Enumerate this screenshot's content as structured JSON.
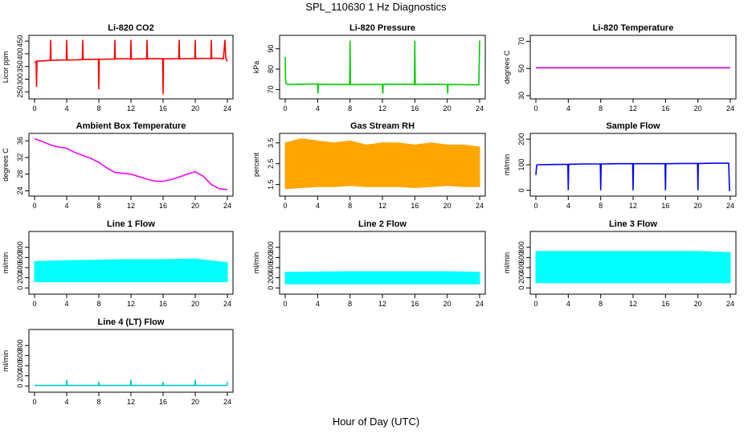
{
  "figure": {
    "title": "SPL_110630  1 Hz Diagnostics",
    "xlabel": "Hour of Day (UTC)"
  },
  "chart_data": [
    {
      "type": "line",
      "title": "Li-820 CO2",
      "ylabel": "Licor ppm",
      "color": "#ff0000",
      "xlim": [
        0,
        24
      ],
      "xticks": [
        0,
        4,
        8,
        12,
        16,
        20,
        24
      ],
      "ylim": [
        235,
        460
      ],
      "yticks": [
        250,
        300,
        350,
        400,
        450
      ],
      "x": [
        0,
        0.2,
        0.25,
        0.3,
        1,
        1.95,
        2,
        2.05,
        3,
        3.95,
        4,
        4.05,
        5,
        5.95,
        6,
        6.05,
        7,
        7.95,
        8,
        8.05,
        9,
        9.95,
        10,
        10.05,
        11,
        11.95,
        12,
        12.05,
        13,
        13.95,
        14,
        14.05,
        15,
        15.95,
        16,
        16.05,
        17,
        17.95,
        18,
        18.05,
        19,
        19.95,
        20,
        20.05,
        21,
        21.95,
        22,
        22.05,
        23,
        23.5,
        23.7,
        23.8,
        24
      ],
      "y": [
        370,
        365,
        270,
        372,
        372,
        374,
        455,
        374,
        375,
        376,
        455,
        375,
        376,
        377,
        455,
        378,
        378,
        379,
        260,
        378,
        379,
        379,
        455,
        380,
        380,
        380,
        455,
        379,
        380,
        380,
        455,
        380,
        381,
        380,
        240,
        380,
        380,
        381,
        455,
        380,
        381,
        381,
        455,
        381,
        382,
        381,
        455,
        382,
        382,
        380,
        455,
        382,
        370
      ]
    },
    {
      "type": "line",
      "title": "Li-820 Pressure",
      "ylabel": "kPa",
      "color": "#00cc00",
      "xlim": [
        0,
        24
      ],
      "xticks": [
        0,
        4,
        8,
        12,
        16,
        20,
        24
      ],
      "ylim": [
        67,
        95
      ],
      "yticks": [
        70,
        80,
        90
      ],
      "x": [
        0,
        0.05,
        0.1,
        0.3,
        2,
        4,
        4.05,
        4.1,
        6,
        7.95,
        8,
        8.05,
        10,
        12,
        12.05,
        12.1,
        14,
        15.95,
        16,
        16.05,
        18,
        20,
        20.05,
        20.1,
        22,
        23.9,
        24
      ],
      "y": [
        86,
        75,
        73,
        72.5,
        72.6,
        72.7,
        68,
        72.6,
        72.5,
        72.5,
        94,
        72.4,
        72.5,
        72.5,
        68,
        72.6,
        72.6,
        72.6,
        94,
        72.5,
        72.6,
        72.5,
        68,
        72.5,
        72.4,
        72.3,
        94
      ]
    },
    {
      "type": "line",
      "title": "Li-820 Temperature",
      "ylabel": "degrees C",
      "color": "#cc00cc",
      "xlim": [
        0,
        24
      ],
      "xticks": [
        0,
        4,
        8,
        12,
        16,
        20,
        24
      ],
      "ylim": [
        30,
        72
      ],
      "yticks": [
        30,
        50,
        70
      ],
      "x": [
        0,
        24
      ],
      "y": [
        50.5,
        50.5
      ]
    },
    {
      "type": "line",
      "title": "Ambient Box Temperature",
      "ylabel": "degrees C",
      "color": "#ff00ff",
      "xlim": [
        0,
        24
      ],
      "xticks": [
        0,
        4,
        8,
        12,
        16,
        20,
        24
      ],
      "ylim": [
        23.5,
        37
      ],
      "yticks": [
        24,
        28,
        32,
        36
      ],
      "x": [
        0,
        1,
        2,
        3,
        4,
        5,
        6,
        7,
        8,
        9,
        10,
        11,
        12,
        13,
        14,
        15,
        16,
        17,
        18,
        19,
        20,
        21,
        22,
        23,
        24
      ],
      "y": [
        36.5,
        35.8,
        35,
        34.5,
        34.2,
        33.2,
        32.5,
        31.8,
        30.8,
        29.5,
        28.4,
        28.2,
        28,
        27.4,
        26.8,
        26.3,
        26.3,
        26.7,
        27.3,
        28,
        28.6,
        27.5,
        25.5,
        24.5,
        24.3
      ]
    },
    {
      "type": "area",
      "title": "Gas Stream RH",
      "ylabel": "percent",
      "color": "#ffa500",
      "xlim": [
        0,
        24
      ],
      "xticks": [
        0,
        4,
        8,
        12,
        16,
        20,
        24
      ],
      "ylim": [
        1.1,
        3.8
      ],
      "yticks": [
        1.5,
        2.5,
        3.5
      ],
      "x": [
        0,
        2,
        4,
        6,
        8,
        10,
        12,
        14,
        16,
        18,
        20,
        22,
        24
      ],
      "upper": [
        3.5,
        3.7,
        3.6,
        3.5,
        3.6,
        3.4,
        3.5,
        3.5,
        3.4,
        3.5,
        3.4,
        3.4,
        3.3
      ],
      "lower": [
        1.3,
        1.35,
        1.4,
        1.4,
        1.45,
        1.4,
        1.4,
        1.4,
        1.35,
        1.4,
        1.45,
        1.4,
        1.4
      ]
    },
    {
      "type": "line",
      "title": "Sample Flow",
      "ylabel": "ml/min",
      "color": "#0000ff",
      "xlim": [
        0,
        24
      ],
      "xticks": [
        0,
        4,
        8,
        12,
        16,
        20,
        24
      ],
      "ylim": [
        -10,
        210
      ],
      "yticks": [
        0,
        100,
        200
      ],
      "x": [
        0,
        0.1,
        0.2,
        2,
        3.95,
        4,
        4.05,
        6,
        7.95,
        8,
        8.05,
        10,
        11.95,
        12,
        12.05,
        14,
        15.95,
        16,
        16.05,
        18,
        19.95,
        20,
        20.05,
        22,
        23.8,
        23.9,
        24
      ],
      "y": [
        60,
        98,
        100,
        101,
        102,
        0,
        102,
        103,
        103,
        0,
        103,
        104,
        104,
        0,
        104,
        104,
        104,
        0,
        104,
        105,
        105,
        0,
        105,
        106,
        106,
        0,
        0
      ]
    },
    {
      "type": "area",
      "title": "Line 1 Flow",
      "ylabel": "ml/min",
      "color": "#00ffff",
      "xlim": [
        0,
        24
      ],
      "xticks": [
        0,
        4,
        8,
        12,
        16,
        20,
        24
      ],
      "ylim": [
        -60,
        1050
      ],
      "yticks": [
        0,
        200,
        400,
        600,
        800
      ],
      "x": [
        0,
        4,
        8,
        12,
        16,
        20,
        24
      ],
      "upper": [
        520,
        540,
        550,
        560,
        560,
        570,
        500
      ],
      "lower": [
        120,
        120,
        120,
        120,
        120,
        120,
        120
      ]
    },
    {
      "type": "area",
      "title": "Line 2 Flow",
      "ylabel": "ml/min",
      "color": "#00ffff",
      "xlim": [
        0,
        24
      ],
      "xticks": [
        0,
        4,
        8,
        12,
        16,
        20,
        24
      ],
      "ylim": [
        -60,
        1050
      ],
      "yticks": [
        0,
        200,
        400,
        600,
        800
      ],
      "x": [
        0,
        4,
        8,
        12,
        16,
        20,
        24
      ],
      "upper": [
        310,
        315,
        320,
        320,
        320,
        320,
        310
      ],
      "lower": [
        80,
        80,
        80,
        80,
        80,
        80,
        80
      ]
    },
    {
      "type": "area",
      "title": "Line 3 Flow",
      "ylabel": "ml/min",
      "color": "#00ffff",
      "xlim": [
        0,
        24
      ],
      "xticks": [
        0,
        4,
        8,
        12,
        16,
        20,
        24
      ],
      "ylim": [
        -60,
        1050
      ],
      "yticks": [
        0,
        200,
        400,
        600,
        800
      ],
      "x": [
        0,
        4,
        8,
        12,
        16,
        20,
        24
      ],
      "upper": [
        720,
        720,
        720,
        720,
        720,
        720,
        700
      ],
      "lower": [
        100,
        100,
        100,
        100,
        100,
        100,
        100
      ]
    },
    {
      "type": "line",
      "title": "Line 4 (LT) Flow",
      "ylabel": "ml/min",
      "color": "#00cccc",
      "xlim": [
        0,
        24
      ],
      "xticks": [
        0,
        4,
        8,
        12,
        16,
        20,
        24
      ],
      "ylim": [
        -60,
        1050
      ],
      "yticks": [
        0,
        200,
        400,
        600,
        800
      ],
      "x": [
        0,
        3.95,
        4,
        4.05,
        7.95,
        8,
        8.05,
        11.95,
        12,
        12.05,
        15.95,
        16,
        16.05,
        19.95,
        20,
        20.05,
        23.95,
        24
      ],
      "y": [
        10,
        10,
        120,
        10,
        10,
        80,
        10,
        10,
        120,
        10,
        10,
        80,
        10,
        10,
        120,
        10,
        10,
        80
      ]
    }
  ]
}
